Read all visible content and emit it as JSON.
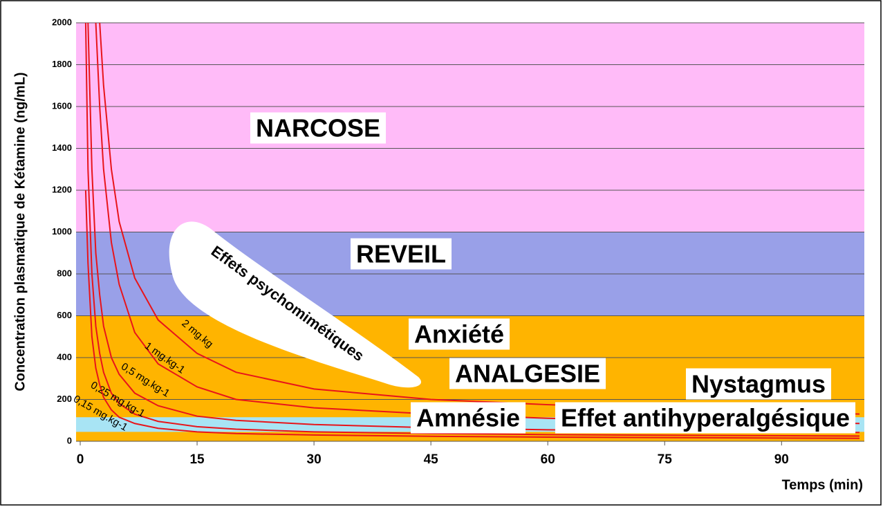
{
  "chart_data": {
    "type": "line",
    "ylabel": "Concentration plasmatique de Kétamine (ng/mL)",
    "xlabel": "Temps (min)",
    "xlim": [
      0,
      100
    ],
    "ylim": [
      0,
      2000
    ],
    "xticks": [
      0,
      15,
      30,
      45,
      60,
      75,
      90
    ],
    "yticks": [
      0,
      200,
      400,
      600,
      800,
      1000,
      1200,
      1400,
      1600,
      1800,
      2000
    ],
    "grid": true,
    "regions": [
      {
        "from": 1000,
        "to": 2000,
        "color": "#ffbbf8"
      },
      {
        "from": 600,
        "to": 1000,
        "color": "#99a0e8"
      },
      {
        "from": 0,
        "to": 600,
        "color": "#ffb400"
      },
      {
        "from": 45,
        "to": 115,
        "color": "#a8e4f4"
      }
    ],
    "annotations": [
      "NARCOSE",
      "REVEIL",
      "Anxiété",
      "ANALGESIE",
      "Nystagmus",
      "Amnésie",
      "Effet antihyperalgésique",
      "Effets psychomimétiques"
    ],
    "x": [
      0.7,
      1,
      1.5,
      2,
      2.5,
      3,
      4,
      5,
      7,
      10,
      15,
      20,
      30,
      45,
      60,
      80,
      100
    ],
    "series": [
      {
        "name": "2 mg.kg",
        "color": "#e8141a",
        "values": [
          null,
          null,
          null,
          null,
          2000,
          1700,
          1300,
          1050,
          780,
          580,
          420,
          330,
          250,
          200,
          175,
          150,
          130
        ]
      },
      {
        "name": "1 mg.kg-1",
        "color": "#e8141a",
        "values": [
          null,
          null,
          null,
          2000,
          1600,
          1300,
          950,
          750,
          520,
          370,
          260,
          200,
          160,
          130,
          110,
          95,
          85
        ]
      },
      {
        "name": "0,5 mg.kg-1",
        "color": "#e8141a",
        "values": [
          null,
          2000,
          1300,
          900,
          700,
          550,
          400,
          320,
          230,
          170,
          120,
          100,
          80,
          65,
          55,
          48,
          42
        ]
      },
      {
        "name": "0,25 mg.kg-1",
        "color": "#e8141a",
        "values": [
          2000,
          1300,
          800,
          550,
          420,
          330,
          230,
          180,
          130,
          95,
          70,
          58,
          45,
          37,
          32,
          28,
          25
        ]
      },
      {
        "name": "0,15 mg.kg-1",
        "color": "#e8141a",
        "values": [
          1200,
          850,
          500,
          350,
          270,
          210,
          150,
          115,
          85,
          62,
          45,
          37,
          30,
          24,
          20,
          17,
          14
        ]
      }
    ]
  }
}
